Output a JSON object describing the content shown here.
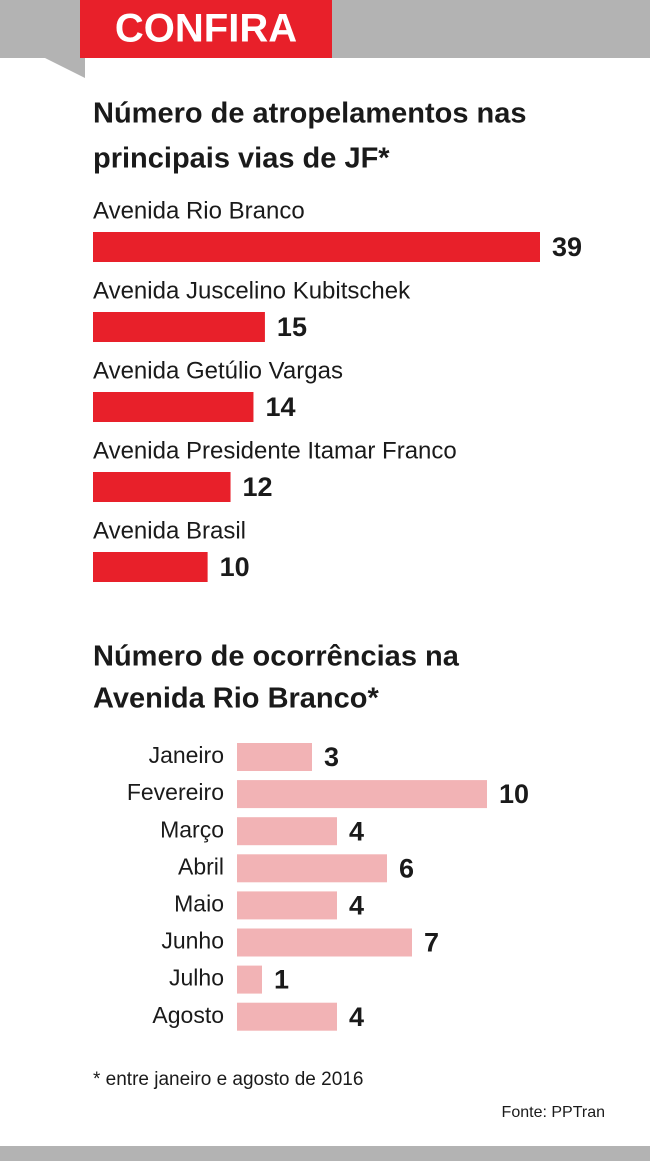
{
  "header": "CONFIRA",
  "chart_data": [
    {
      "type": "bar",
      "orientation": "horizontal",
      "title": [
        "Número de atropelamentos nas",
        "principais vias de JF*"
      ],
      "categories": [
        "Avenida Rio Branco",
        "Avenida Juscelino Kubitschek",
        "Avenida Getúlio Vargas",
        "Avenida Presidente Itamar Franco",
        "Avenida Brasil"
      ],
      "values": [
        39,
        15,
        14,
        12,
        10
      ],
      "color": "#e8202a"
    },
    {
      "type": "bar",
      "orientation": "horizontal",
      "title": [
        "Número de ocorrências na",
        "Avenida Rio Branco*"
      ],
      "categories": [
        "Janeiro",
        "Fevereiro",
        "Março",
        "Abril",
        "Maio",
        "Junho",
        "Julho",
        "Agosto"
      ],
      "values": [
        3,
        10,
        4,
        6,
        4,
        7,
        1,
        4
      ],
      "color": "#f2b3b5"
    }
  ],
  "footnote": "* entre janeiro e agosto de 2016",
  "source": "Fonte: PPTran"
}
